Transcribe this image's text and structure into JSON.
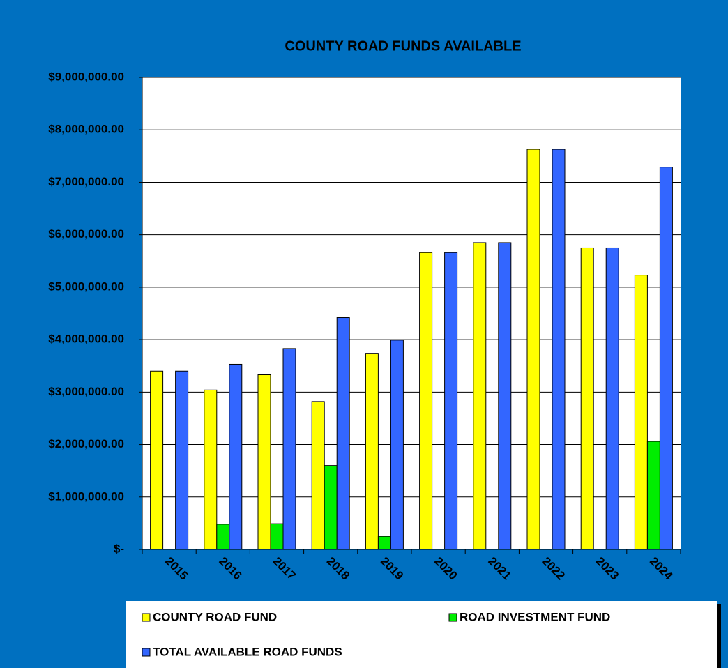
{
  "chart_data": {
    "type": "bar",
    "title": "COUNTY ROAD FUNDS AVAILABLE",
    "categories": [
      "2015",
      "2016",
      "2017",
      "2018",
      "2019",
      "2020",
      "2021",
      "2022",
      "2023",
      "2024"
    ],
    "series": [
      {
        "name": "COUNTY ROAD FUND",
        "color": "#ffff00",
        "values": [
          3400000,
          3040000,
          3330000,
          2820000,
          3740000,
          5660000,
          5850000,
          7630000,
          5750000,
          5230000
        ]
      },
      {
        "name": "ROAD INVESTMENT FUND",
        "color": "#00ee00",
        "values": [
          0,
          480000,
          490000,
          1600000,
          250000,
          0,
          0,
          0,
          0,
          2060000
        ]
      },
      {
        "name": "TOTAL AVAILABLE ROAD FUNDS",
        "color": "#3366ff",
        "values": [
          3400000,
          3530000,
          3830000,
          4420000,
          3990000,
          5660000,
          5850000,
          7630000,
          5750000,
          7290000
        ]
      }
    ],
    "ylim": [
      0,
      9000000
    ],
    "yticks": [
      {
        "value": 0,
        "label": "$-"
      },
      {
        "value": 1000000,
        "label": "$1,000,000.00"
      },
      {
        "value": 2000000,
        "label": "$2,000,000.00"
      },
      {
        "value": 3000000,
        "label": "$3,000,000.00"
      },
      {
        "value": 4000000,
        "label": "$4,000,000.00"
      },
      {
        "value": 5000000,
        "label": "$5,000,000.00"
      },
      {
        "value": 6000000,
        "label": "$6,000,000.00"
      },
      {
        "value": 7000000,
        "label": "$7,000,000.00"
      },
      {
        "value": 8000000,
        "label": "$8,000,000.00"
      },
      {
        "value": 9000000,
        "label": "$9,000,000.00"
      }
    ],
    "grid": true,
    "legend": "bottom"
  }
}
